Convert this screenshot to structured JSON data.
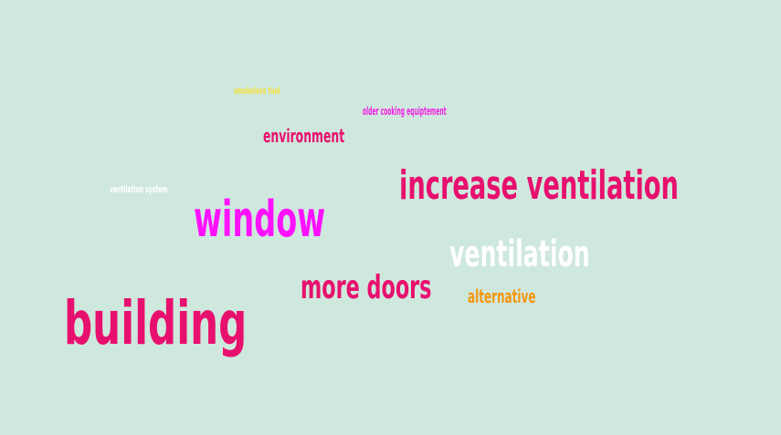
{
  "background_color": "#cfe8de",
  "words": [
    {
      "text": "smokeless fuel",
      "color": "#f5e142"
    },
    {
      "text": "older cooking equiptement",
      "color": "#f020e0"
    },
    {
      "text": "environment",
      "color": "#e8106e"
    },
    {
      "text": "ventilation system",
      "color": "#ffffff"
    },
    {
      "text": "increase ventilation",
      "color": "#e8106e"
    },
    {
      "text": "window",
      "color": "#ff10ff"
    },
    {
      "text": "ventilation",
      "color": "#ffffff"
    },
    {
      "text": "more doors",
      "color": "#e8106e"
    },
    {
      "text": "alternative",
      "color": "#f5960f"
    },
    {
      "text": "building",
      "color": "#e8106e"
    }
  ]
}
